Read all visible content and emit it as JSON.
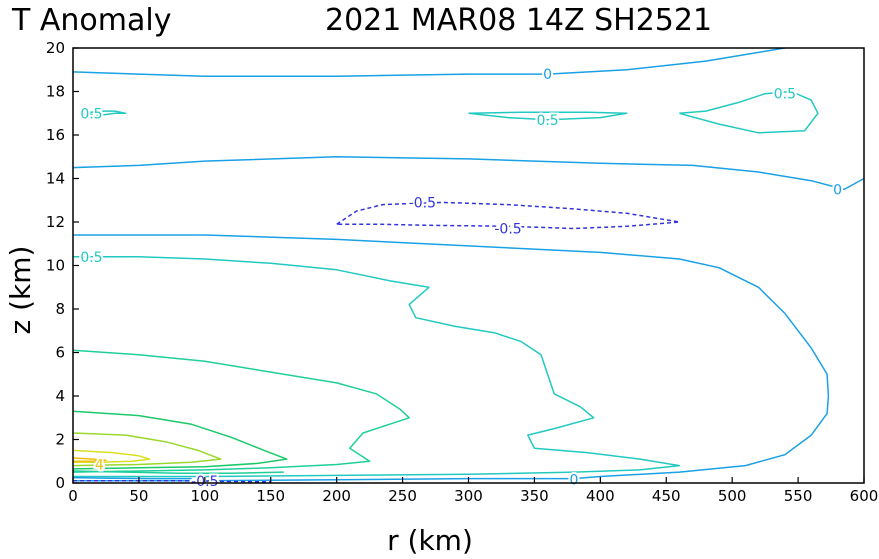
{
  "title_left": "T Anomaly",
  "title_right": "2021 MAR08 14Z  SH2521",
  "chart_data": {
    "type": "contour",
    "title": "T Anomaly",
    "subtitle": "2021 MAR08 14Z  SH2521",
    "xlabel": "r (km)",
    "ylabel": "z (km)",
    "xlim": [
      0,
      600
    ],
    "ylim": [
      0,
      20
    ],
    "xticks": [
      0,
      50,
      100,
      150,
      200,
      250,
      300,
      350,
      400,
      450,
      500,
      550,
      600
    ],
    "yticks": [
      0,
      2,
      4,
      6,
      8,
      10,
      12,
      14,
      16,
      18,
      20
    ],
    "grid": false,
    "legend": "none",
    "contour_interval_note_colors": {
      "neg_0_5": "#3333dd",
      "zero": "#1aa0e6",
      "pos_0_5": "#22c9c0",
      "pos_1": "#1fcf9a",
      "pos_1_5": "#1ac96a",
      "pos_2": "#22c21e",
      "pos_2_5": "#9ad82e",
      "pos_3": "#d8e020",
      "pos_4": "#f0c010"
    },
    "contours": [
      {
        "level": 0,
        "color": "#1aa0e6",
        "dashed": false,
        "points": [
          [
            0,
            18.9
          ],
          [
            50,
            18.8
          ],
          [
            100,
            18.7
          ],
          [
            200,
            18.7
          ],
          [
            300,
            18.8
          ],
          [
            360,
            18.8
          ],
          [
            420,
            19.0
          ],
          [
            480,
            19.4
          ],
          [
            540,
            20.0
          ]
        ]
      },
      {
        "level": 0.5,
        "color": "#22c9c0",
        "dashed": false,
        "points": [
          [
            8,
            17.0
          ],
          [
            20,
            16.9
          ],
          [
            32,
            17.0
          ],
          [
            40,
            17.0
          ],
          [
            32,
            17.1
          ],
          [
            20,
            17.1
          ],
          [
            8,
            17.0
          ]
        ]
      },
      {
        "level": 0.5,
        "color": "#22c9c0",
        "dashed": false,
        "points": [
          [
            300,
            17.0
          ],
          [
            330,
            16.8
          ],
          [
            360,
            16.7
          ],
          [
            400,
            16.8
          ],
          [
            420,
            17.0
          ],
          [
            390,
            17.05
          ],
          [
            340,
            17.05
          ],
          [
            300,
            17.0
          ]
        ]
      },
      {
        "level": 0.5,
        "color": "#22c9c0",
        "dashed": false,
        "points": [
          [
            460,
            17.0
          ],
          [
            490,
            16.5
          ],
          [
            520,
            16.1
          ],
          [
            555,
            16.2
          ],
          [
            565,
            17.0
          ],
          [
            560,
            17.6
          ],
          [
            545,
            18.0
          ],
          [
            525,
            17.9
          ],
          [
            505,
            17.5
          ],
          [
            480,
            17.1
          ],
          [
            460,
            17.0
          ]
        ]
      },
      {
        "level": 0,
        "color": "#1aa0e6",
        "dashed": false,
        "points": [
          [
            0,
            14.5
          ],
          [
            50,
            14.6
          ],
          [
            100,
            14.8
          ],
          [
            200,
            15.0
          ],
          [
            300,
            14.9
          ],
          [
            400,
            14.7
          ],
          [
            470,
            14.6
          ],
          [
            520,
            14.3
          ],
          [
            560,
            13.9
          ],
          [
            585,
            13.5
          ],
          [
            600,
            14.0
          ]
        ]
      },
      {
        "level": -0.5,
        "color": "#3333dd",
        "dashed": true,
        "points": [
          [
            200,
            11.9
          ],
          [
            215,
            12.5
          ],
          [
            235,
            12.8
          ],
          [
            280,
            12.9
          ],
          [
            330,
            12.8
          ],
          [
            380,
            12.6
          ],
          [
            420,
            12.4
          ],
          [
            460,
            12.0
          ],
          [
            420,
            11.8
          ],
          [
            380,
            11.7
          ],
          [
            330,
            11.8
          ],
          [
            270,
            11.85
          ],
          [
            230,
            11.9
          ],
          [
            200,
            11.9
          ]
        ]
      },
      {
        "level": 0,
        "color": "#1aa0e6",
        "dashed": false,
        "points": [
          [
            0,
            11.4
          ],
          [
            100,
            11.4
          ],
          [
            200,
            11.2
          ],
          [
            300,
            10.9
          ],
          [
            400,
            10.6
          ],
          [
            460,
            10.3
          ],
          [
            490,
            9.9
          ],
          [
            520,
            9.0
          ],
          [
            540,
            7.8
          ],
          [
            560,
            6.2
          ],
          [
            572,
            5.0
          ],
          [
            573,
            4.0
          ],
          [
            572,
            3.2
          ],
          [
            560,
            2.2
          ],
          [
            540,
            1.3
          ],
          [
            510,
            0.8
          ],
          [
            460,
            0.5
          ],
          [
            400,
            0.3
          ],
          [
            380,
            0.2
          ],
          [
            300,
            0.2
          ],
          [
            200,
            0.15
          ],
          [
            100,
            0.1
          ],
          [
            0,
            0.1
          ]
        ]
      },
      {
        "level": 0.5,
        "color": "#22c9c0",
        "dashed": false,
        "points": [
          [
            0,
            10.4
          ],
          [
            50,
            10.4
          ],
          [
            100,
            10.3
          ],
          [
            150,
            10.1
          ],
          [
            200,
            9.8
          ],
          [
            240,
            9.3
          ],
          [
            270,
            9.0
          ],
          [
            255,
            8.2
          ],
          [
            260,
            7.6
          ],
          [
            290,
            7.2
          ],
          [
            320,
            6.9
          ],
          [
            340,
            6.5
          ],
          [
            355,
            5.9
          ],
          [
            360,
            5.0
          ],
          [
            365,
            4.1
          ],
          [
            385,
            3.5
          ],
          [
            395,
            3.0
          ],
          [
            365,
            2.5
          ],
          [
            345,
            2.2
          ],
          [
            350,
            1.6
          ],
          [
            390,
            1.4
          ],
          [
            430,
            1.1
          ],
          [
            460,
            0.8
          ],
          [
            430,
            0.6
          ],
          [
            380,
            0.5
          ],
          [
            300,
            0.4
          ],
          [
            200,
            0.35
          ],
          [
            100,
            0.3
          ],
          [
            0,
            0.3
          ]
        ]
      },
      {
        "level": 1,
        "color": "#1fcf9a",
        "dashed": false,
        "points": [
          [
            0,
            6.1
          ],
          [
            50,
            5.9
          ],
          [
            100,
            5.6
          ],
          [
            150,
            5.1
          ],
          [
            200,
            4.6
          ],
          [
            230,
            4.1
          ],
          [
            248,
            3.4
          ],
          [
            255,
            3.0
          ],
          [
            240,
            2.7
          ],
          [
            220,
            2.3
          ],
          [
            210,
            1.6
          ],
          [
            225,
            1.0
          ],
          [
            200,
            0.85
          ],
          [
            150,
            0.7
          ],
          [
            100,
            0.6
          ],
          [
            50,
            0.55
          ],
          [
            0,
            0.5
          ]
        ]
      },
      {
        "level": 1.5,
        "color": "#1ac96a",
        "dashed": false,
        "points": [
          [
            0,
            3.3
          ],
          [
            50,
            3.1
          ],
          [
            90,
            2.7
          ],
          [
            120,
            2.1
          ],
          [
            145,
            1.5
          ],
          [
            162,
            1.1
          ],
          [
            140,
            0.9
          ],
          [
            100,
            0.75
          ],
          [
            50,
            0.7
          ],
          [
            0,
            0.65
          ]
        ]
      },
      {
        "level": 2,
        "color": "#9ad82e",
        "dashed": false,
        "points": [
          [
            0,
            2.3
          ],
          [
            40,
            2.2
          ],
          [
            70,
            1.9
          ],
          [
            95,
            1.5
          ],
          [
            112,
            1.1
          ],
          [
            90,
            0.95
          ],
          [
            50,
            0.85
          ],
          [
            0,
            0.8
          ]
        ]
      },
      {
        "level": 3,
        "color": "#d8e020",
        "dashed": false,
        "points": [
          [
            0,
            1.5
          ],
          [
            30,
            1.4
          ],
          [
            50,
            1.25
          ],
          [
            58,
            1.1
          ],
          [
            45,
            1.0
          ],
          [
            20,
            0.95
          ],
          [
            0,
            0.95
          ]
        ]
      },
      {
        "level": 4,
        "color": "#f0c010",
        "dashed": false,
        "points": [
          [
            0,
            1.15
          ],
          [
            15,
            1.1
          ],
          [
            25,
            1.05
          ],
          [
            15,
            1.0
          ],
          [
            0,
            1.0
          ]
        ]
      },
      {
        "level": 1,
        "color": "#1fcf9a",
        "dashed": false,
        "points": [
          [
            0,
            0.55
          ],
          [
            40,
            0.5
          ],
          [
            80,
            0.45
          ],
          [
            120,
            0.45
          ],
          [
            160,
            0.5
          ]
        ]
      },
      {
        "level": 0,
        "color": "#1aa0e6",
        "dashed": false,
        "points": [
          [
            0,
            0.25
          ],
          [
            30,
            0.22
          ],
          [
            60,
            0.2
          ],
          [
            90,
            0.2
          ]
        ]
      },
      {
        "level": -0.5,
        "color": "#3333dd",
        "dashed": true,
        "points": [
          [
            0,
            0.1
          ],
          [
            40,
            0.1
          ],
          [
            80,
            0.1
          ],
          [
            110,
            0.08
          ],
          [
            150,
            0.05
          ]
        ]
      }
    ],
    "annotations": [
      {
        "text": "0",
        "x": 360,
        "y": 18.8,
        "color": "#1aa0e6"
      },
      {
        "text": "0.5",
        "x": 14,
        "y": 17.0,
        "color": "#22c9c0"
      },
      {
        "text": "0.5",
        "x": 360,
        "y": 16.7,
        "color": "#22c9c0"
      },
      {
        "text": "0.5",
        "x": 540,
        "y": 17.9,
        "color": "#22c9c0"
      },
      {
        "text": "0",
        "x": 580,
        "y": 13.5,
        "color": "#1aa0e6"
      },
      {
        "text": "-0.5",
        "x": 265,
        "y": 12.9,
        "color": "#3333dd"
      },
      {
        "text": "-0.5",
        "x": 330,
        "y": 11.7,
        "color": "#3333dd"
      },
      {
        "text": "0.5",
        "x": 14,
        "y": 10.4,
        "color": "#22c9c0"
      },
      {
        "text": "4",
        "x": 20,
        "y": 0.85,
        "color": "#f0c010"
      },
      {
        "text": "0",
        "x": 380,
        "y": 0.15,
        "color": "#1aa0e6"
      },
      {
        "text": "-0.5",
        "x": 100,
        "y": 0.1,
        "color": "#3333dd"
      }
    ]
  }
}
